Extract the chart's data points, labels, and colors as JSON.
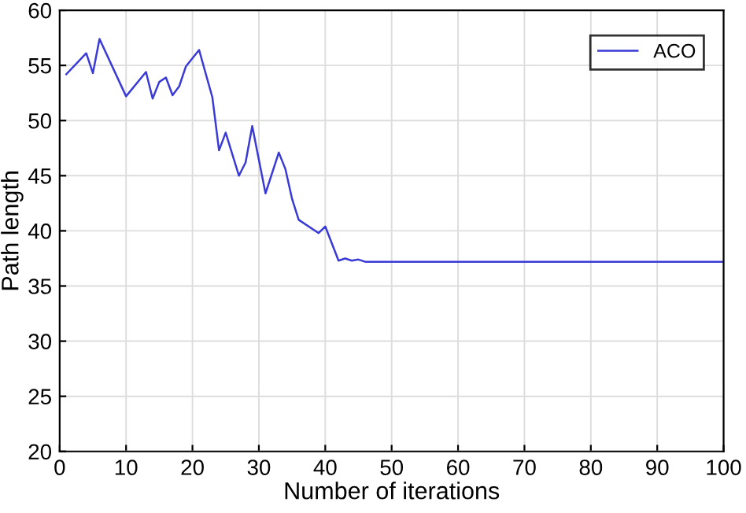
{
  "chart_data": {
    "type": "line",
    "xlabel": "Number of iterations",
    "ylabel": "Path length",
    "x": [
      1,
      4,
      5,
      6,
      10,
      13,
      14,
      15,
      16,
      17,
      18,
      19,
      21,
      23,
      24,
      25,
      27,
      28,
      29,
      31,
      33,
      34,
      35,
      36,
      39,
      40,
      42,
      43,
      44,
      45,
      46,
      100
    ],
    "series": [
      {
        "name": "ACO",
        "color": "#3a3ad6",
        "values": [
          54.2,
          56.1,
          54.3,
          57.4,
          52.2,
          54.4,
          52.0,
          53.5,
          53.9,
          52.3,
          53.1,
          54.9,
          56.4,
          52.1,
          47.3,
          48.9,
          45.0,
          46.2,
          49.5,
          43.4,
          47.1,
          45.6,
          42.9,
          41.0,
          39.8,
          40.4,
          37.3,
          37.5,
          37.3,
          37.4,
          37.2,
          37.2
        ]
      }
    ],
    "xlim": [
      0,
      100
    ],
    "ylim": [
      20,
      60
    ],
    "xticks": [
      0,
      10,
      20,
      30,
      40,
      50,
      60,
      70,
      80,
      90,
      100
    ],
    "yticks": [
      20,
      25,
      30,
      35,
      40,
      45,
      50,
      55,
      60
    ],
    "grid": true,
    "legend": "top right",
    "line_style": "solid",
    "marker": "none"
  }
}
